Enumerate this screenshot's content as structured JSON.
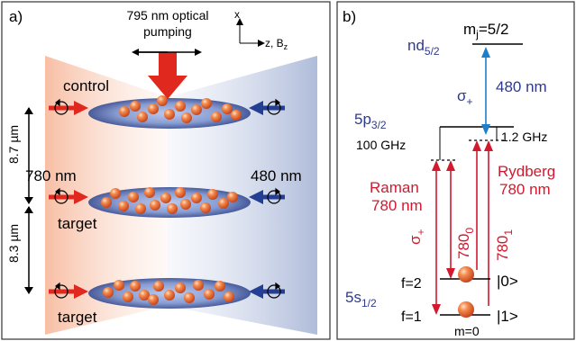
{
  "panel_a": {
    "label": "a)",
    "pump_label_line1": "795 nm optical",
    "pump_label_line2": "pumping",
    "axis_x": "x",
    "axis_z_prefix": "z, B",
    "axis_z_sub": "z",
    "traps": [
      {
        "label": "control"
      },
      {
        "label": "target"
      },
      {
        "label": "target"
      }
    ],
    "spacing_top": "8.7 µm",
    "spacing_bottom": "8.3 µm",
    "wavelength_left": "780 nm",
    "wavelength_right": "480 nm",
    "colors": {
      "red_beam": "#e0281e",
      "blue_beam": "#233e93",
      "atom": "#f07a3a"
    }
  },
  "panel_b": {
    "label": "b)",
    "level_nd": {
      "main": "nd",
      "sub": "5/2"
    },
    "level_mj": {
      "main": "m",
      "sub": "j",
      "rest": "=5/2"
    },
    "level_5p": {
      "main": "5p",
      "sub": "3/2"
    },
    "level_5s": {
      "main": "5s",
      "sub": "1/2"
    },
    "sigma_plus_blue": {
      "main": "σ",
      "sub": "+"
    },
    "blue_wavelength": "480 nm",
    "detuning_1": "100 GHz",
    "detuning_2": "1.2 GHz",
    "raman_line1": "Raman",
    "raman_line2": "780 nm",
    "sigma_plus_red": {
      "main": "σ",
      "sub": "+"
    },
    "rydberg_line1": "Rydberg",
    "rydberg_line2": "780 nm",
    "arrow_780_0": {
      "main": "780",
      "sub": "0"
    },
    "arrow_780_1": {
      "main": "780",
      "sub": "1"
    },
    "f2": "f=2",
    "f1": "f=1",
    "m0": "m=0",
    "ket0": "|0>",
    "ket1": "|1>",
    "colors": {
      "blue_arrow": "#1e7fc8",
      "red_arrow": "#d2192e",
      "level_text": "#2e3a8c"
    }
  }
}
